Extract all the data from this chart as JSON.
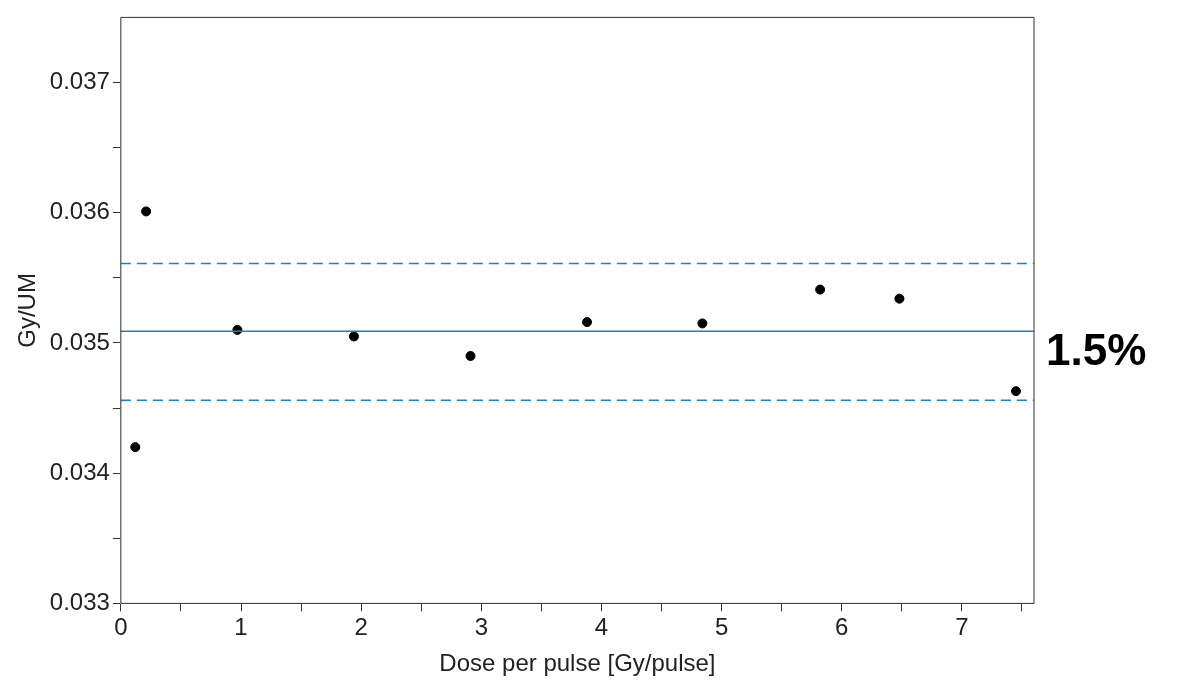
{
  "chart_data": {
    "type": "scatter",
    "xlabel": "Dose per pulse [Gy/pulse]",
    "ylabel": "Gy/UM",
    "x": [
      0.12,
      0.21,
      0.97,
      1.94,
      2.91,
      3.88,
      4.84,
      5.82,
      6.48,
      7.45
    ],
    "series": [
      {
        "color": "#000000",
        "values": [
          0.0342,
          0.03601,
          0.0351,
          0.03505,
          0.0349,
          0.03516,
          0.03515,
          0.03541,
          0.03534,
          0.03463
        ]
      }
    ],
    "marker": "circle",
    "grid": false,
    "legend": false,
    "xlim": [
      0,
      7.6
    ],
    "xticks": [
      0,
      {
        "value": 0.5,
        "label": null
      },
      1,
      {
        "value": 1.5,
        "label": null
      },
      2,
      {
        "value": 2.5,
        "label": null
      },
      3,
      {
        "value": 3.5,
        "label": null
      },
      4,
      {
        "value": 4.5,
        "label": null
      },
      5,
      {
        "value": 5.5,
        "label": null
      },
      6,
      {
        "value": 6.5,
        "label": null
      },
      7,
      {
        "value": 7.5,
        "label": null
      }
    ],
    "ylim": [
      0.033,
      0.0375
    ],
    "yticks": [
      0.033,
      {
        "value": 0.0335,
        "label": null
      },
      0.034,
      {
        "value": 0.0345,
        "label": null
      },
      0.035,
      {
        "value": 0.0355,
        "label": null
      },
      0.036,
      {
        "value": 0.0365,
        "label": null
      },
      0.037
    ],
    "ref_lines": [
      {
        "axis": "y",
        "value": 0.03509,
        "color": "#1f7fc4",
        "line_style": "solid"
      },
      {
        "axis": "y",
        "value": 0.03561,
        "color": "#1f7fc4",
        "line_style": "dashed"
      },
      {
        "axis": "y",
        "value": 0.03456,
        "color": "#1f7fc4",
        "line_style": "dashed"
      }
    ],
    "annotations": [
      "1.5%"
    ]
  }
}
